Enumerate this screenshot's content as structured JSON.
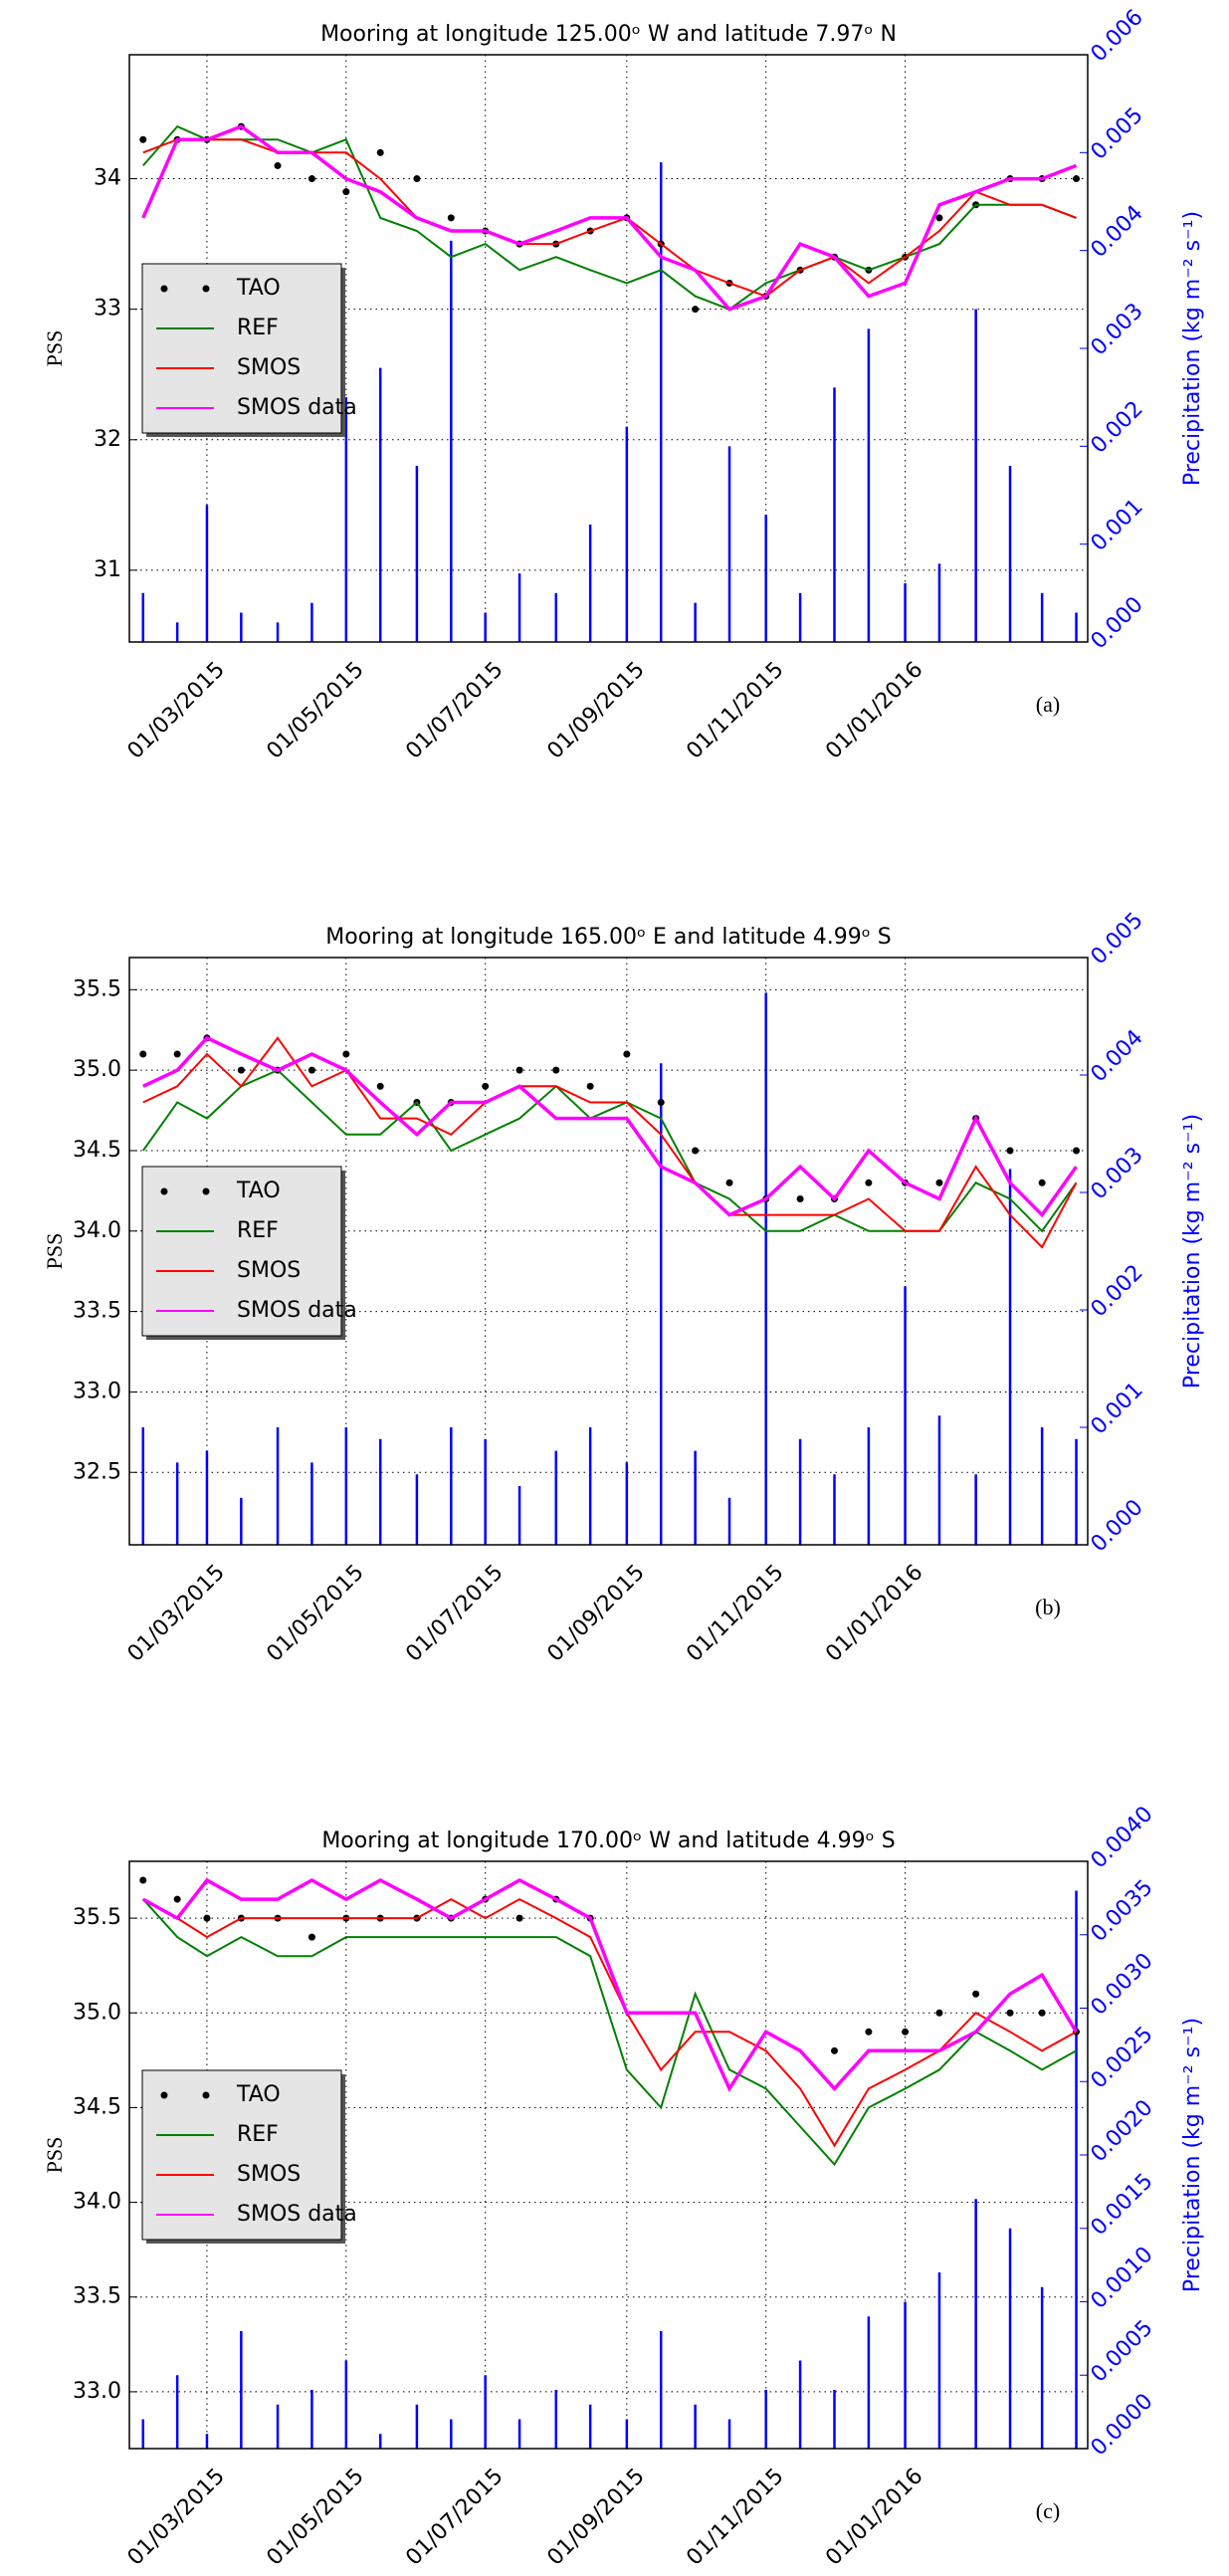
{
  "chart_data": [
    {
      "type": "line",
      "title": "Mooring at longitude 125.00ᵒ W and latitude 7.97ᵒ N",
      "panel_label": "(a)",
      "ylabel": "PSS",
      "y2label": "Precipitation (kg m⁻² s⁻¹)",
      "grid": true,
      "legend": "center left",
      "xlim": [
        "2015-01-26",
        "2016-03-21"
      ],
      "xticks": [
        {
          "value": "2015-03-01",
          "label": "01/03/2015"
        },
        {
          "value": "2015-05-01",
          "label": "01/05/2015"
        },
        {
          "value": "2015-07-01",
          "label": "01/07/2015"
        },
        {
          "value": "2015-09-01",
          "label": "01/09/2015"
        },
        {
          "value": "2015-11-01",
          "label": "01/11/2015"
        },
        {
          "value": "2016-01-01",
          "label": "01/01/2016"
        }
      ],
      "ylim": [
        30.45,
        34.95
      ],
      "yticks": [
        31,
        32,
        33,
        34
      ],
      "y2lim": [
        0,
        0.006
      ],
      "y2ticks": [
        {
          "value": 0,
          "label": "0.000"
        },
        {
          "value": 0.001,
          "label": "0.001"
        },
        {
          "value": 0.002,
          "label": "0.002"
        },
        {
          "value": 0.003,
          "label": "0.003"
        },
        {
          "value": 0.004,
          "label": "0.004"
        },
        {
          "value": 0.005,
          "label": "0.005"
        },
        {
          "value": 0.006,
          "label": "0.006"
        }
      ],
      "x": [
        "2015-02-01",
        "2015-02-16",
        "2015-03-01",
        "2015-03-16",
        "2015-04-01",
        "2015-04-16",
        "2015-05-01",
        "2015-05-16",
        "2015-06-01",
        "2015-06-16",
        "2015-07-01",
        "2015-07-16",
        "2015-08-01",
        "2015-08-16",
        "2015-09-01",
        "2015-09-16",
        "2015-10-01",
        "2015-10-16",
        "2015-11-01",
        "2015-11-16",
        "2015-12-01",
        "2015-12-16",
        "2016-01-01",
        "2016-01-16",
        "2016-02-01",
        "2016-02-16",
        "2016-03-01",
        "2016-03-16"
      ],
      "series": [
        {
          "name": "TAO",
          "color": "#000000",
          "style": "markers",
          "values": [
            34.3,
            34.3,
            34.3,
            34.4,
            34.1,
            34.0,
            33.9,
            34.2,
            34.0,
            33.7,
            33.6,
            33.5,
            33.5,
            33.6,
            33.7,
            33.5,
            33.0,
            33.2,
            33.1,
            33.3,
            33.4,
            33.3,
            33.4,
            33.7,
            33.8,
            34.0,
            34.0,
            34.0
          ]
        },
        {
          "name": "REF",
          "color": "#008000",
          "style": "line",
          "values": [
            34.1,
            34.4,
            34.3,
            34.3,
            34.3,
            34.2,
            34.3,
            33.7,
            33.6,
            33.4,
            33.5,
            33.3,
            33.4,
            33.3,
            33.2,
            33.3,
            33.1,
            33.0,
            33.2,
            33.3,
            33.4,
            33.3,
            33.4,
            33.5,
            33.8,
            33.8,
            33.8,
            33.7
          ]
        },
        {
          "name": "SMOS",
          "color": "#ff0000",
          "style": "line",
          "values": [
            34.2,
            34.3,
            34.3,
            34.3,
            34.2,
            34.2,
            34.2,
            34.0,
            33.7,
            33.6,
            33.6,
            33.5,
            33.5,
            33.6,
            33.7,
            33.5,
            33.3,
            33.2,
            33.1,
            33.3,
            33.4,
            33.2,
            33.4,
            33.6,
            33.9,
            33.8,
            33.8,
            33.7
          ]
        },
        {
          "name": "SMOS data",
          "color": "#ff00ff",
          "style": "line",
          "values": [
            33.7,
            34.3,
            34.3,
            34.4,
            34.2,
            34.2,
            34.0,
            33.9,
            33.7,
            33.6,
            33.6,
            33.5,
            33.6,
            33.7,
            33.7,
            33.4,
            33.3,
            33.0,
            33.1,
            33.5,
            33.4,
            33.1,
            33.2,
            33.8,
            33.9,
            34.0,
            34.0,
            34.1
          ]
        },
        {
          "color": "#0000ff",
          "style": "stem",
          "axis": "y2",
          "values": [
            0.0005,
            0.0002,
            0.0014,
            0.0003,
            0.0002,
            0.0004,
            0.0025,
            0.0028,
            0.0018,
            0.0041,
            0.0003,
            0.0007,
            0.0005,
            0.0012,
            0.0022,
            0.0049,
            0.0004,
            0.002,
            0.0013,
            0.0005,
            0.0026,
            0.0032,
            0.0006,
            0.0008,
            0.0034,
            0.0018,
            0.0005,
            0.0003
          ]
        }
      ]
    },
    {
      "type": "line",
      "title": "Mooring at longitude 165.00ᵒ E and latitude 4.99ᵒ S",
      "panel_label": "(b)",
      "ylabel": "PSS",
      "y2label": "Precipitation (kg m⁻² s⁻¹)",
      "grid": true,
      "legend": "center left",
      "xlim": [
        "2015-01-26",
        "2016-03-21"
      ],
      "xticks": [
        {
          "value": "2015-03-01",
          "label": "01/03/2015"
        },
        {
          "value": "2015-05-01",
          "label": "01/05/2015"
        },
        {
          "value": "2015-07-01",
          "label": "01/07/2015"
        },
        {
          "value": "2015-09-01",
          "label": "01/09/2015"
        },
        {
          "value": "2015-11-01",
          "label": "01/11/2015"
        },
        {
          "value": "2016-01-01",
          "label": "01/01/2016"
        }
      ],
      "ylim": [
        32.05,
        35.7
      ],
      "yticks": [
        32.5,
        {
          "value": 33,
          "label": "33.0"
        },
        33.5,
        {
          "value": 34,
          "label": "34.0"
        },
        34.5,
        {
          "value": 35,
          "label": "35.0"
        },
        35.5
      ],
      "y2lim": [
        0,
        0.005
      ],
      "y2ticks": [
        {
          "value": 0,
          "label": "0.000"
        },
        {
          "value": 0.001,
          "label": "0.001"
        },
        {
          "value": 0.002,
          "label": "0.002"
        },
        {
          "value": 0.003,
          "label": "0.003"
        },
        {
          "value": 0.004,
          "label": "0.004"
        },
        {
          "value": 0.005,
          "label": "0.005"
        }
      ],
      "x": [
        "2015-02-01",
        "2015-02-16",
        "2015-03-01",
        "2015-03-16",
        "2015-04-01",
        "2015-04-16",
        "2015-05-01",
        "2015-05-16",
        "2015-06-01",
        "2015-06-16",
        "2015-07-01",
        "2015-07-16",
        "2015-08-01",
        "2015-08-16",
        "2015-09-01",
        "2015-09-16",
        "2015-10-01",
        "2015-10-16",
        "2015-11-01",
        "2015-11-16",
        "2015-12-01",
        "2015-12-16",
        "2016-01-01",
        "2016-01-16",
        "2016-02-01",
        "2016-02-16",
        "2016-03-01",
        "2016-03-16"
      ],
      "series": [
        {
          "name": "TAO",
          "color": "#000000",
          "style": "markers",
          "values": [
            35.1,
            35.1,
            35.2,
            35.0,
            35.0,
            35.0,
            35.1,
            34.9,
            34.8,
            34.8,
            34.9,
            35.0,
            35.0,
            34.9,
            35.1,
            34.8,
            34.5,
            34.3,
            34.2,
            34.2,
            34.2,
            34.3,
            34.3,
            34.3,
            34.7,
            34.5,
            34.3,
            34.5
          ]
        },
        {
          "name": "REF",
          "color": "#008000",
          "style": "line",
          "values": [
            34.5,
            34.8,
            34.7,
            34.9,
            35.0,
            34.8,
            34.6,
            34.6,
            34.8,
            34.5,
            34.6,
            34.7,
            34.9,
            34.7,
            34.8,
            34.7,
            34.3,
            34.2,
            34.0,
            34.0,
            34.1,
            34.0,
            34.0,
            34.0,
            34.3,
            34.2,
            34.0,
            34.3
          ]
        },
        {
          "name": "SMOS",
          "color": "#ff0000",
          "style": "line",
          "values": [
            34.8,
            34.9,
            35.1,
            34.9,
            35.2,
            34.9,
            35.0,
            34.7,
            34.7,
            34.6,
            34.8,
            34.9,
            34.9,
            34.8,
            34.8,
            34.6,
            34.3,
            34.1,
            34.1,
            34.1,
            34.1,
            34.2,
            34.0,
            34.0,
            34.4,
            34.1,
            33.9,
            34.3
          ]
        },
        {
          "name": "SMOS data",
          "color": "#ff00ff",
          "style": "line",
          "values": [
            34.9,
            35.0,
            35.2,
            35.1,
            35.0,
            35.1,
            35.0,
            34.8,
            34.6,
            34.8,
            34.8,
            34.9,
            34.7,
            34.7,
            34.7,
            34.4,
            34.3,
            34.1,
            34.2,
            34.4,
            34.2,
            34.5,
            34.3,
            34.2,
            34.7,
            34.3,
            34.1,
            34.4
          ]
        },
        {
          "color": "#0000ff",
          "style": "stem",
          "axis": "y2",
          "values": [
            0.001,
            0.0007,
            0.0008,
            0.0004,
            0.001,
            0.0007,
            0.001,
            0.0009,
            0.0006,
            0.001,
            0.0009,
            0.0005,
            0.0008,
            0.001,
            0.0007,
            0.0041,
            0.0008,
            0.0004,
            0.0047,
            0.0009,
            0.0006,
            0.001,
            0.0022,
            0.0011,
            0.0006,
            0.0032,
            0.001,
            0.0009
          ]
        }
      ]
    },
    {
      "type": "line",
      "title": "Mooring at longitude 170.00ᵒ W and latitude 4.99ᵒ S",
      "panel_label": "(c)",
      "ylabel": "PSS",
      "y2label": "Precipitation (kg m⁻² s⁻¹)",
      "grid": true,
      "legend": "center left",
      "xlim": [
        "2015-01-26",
        "2016-03-21"
      ],
      "xticks": [
        {
          "value": "2015-03-01",
          "label": "01/03/2015"
        },
        {
          "value": "2015-05-01",
          "label": "01/05/2015"
        },
        {
          "value": "2015-07-01",
          "label": "01/07/2015"
        },
        {
          "value": "2015-09-01",
          "label": "01/09/2015"
        },
        {
          "value": "2015-11-01",
          "label": "01/11/2015"
        },
        {
          "value": "2016-01-01",
          "label": "01/01/2016"
        }
      ],
      "ylim": [
        32.7,
        35.8
      ],
      "yticks": [
        {
          "value": 33,
          "label": "33.0"
        },
        33.5,
        {
          "value": 34,
          "label": "34.0"
        },
        34.5,
        {
          "value": 35,
          "label": "35.0"
        },
        35.5
      ],
      "y2lim": [
        0,
        0.004
      ],
      "y2ticks": [
        {
          "value": 0,
          "label": "0.0000"
        },
        {
          "value": 0.0005,
          "label": "0.0005"
        },
        {
          "value": 0.001,
          "label": "0.0010"
        },
        {
          "value": 0.0015,
          "label": "0.0015"
        },
        {
          "value": 0.002,
          "label": "0.0020"
        },
        {
          "value": 0.0025,
          "label": "0.0025"
        },
        {
          "value": 0.003,
          "label": "0.0030"
        },
        {
          "value": 0.0035,
          "label": "0.0035"
        },
        {
          "value": 0.004,
          "label": "0.0040"
        }
      ],
      "x": [
        "2015-02-01",
        "2015-02-16",
        "2015-03-01",
        "2015-03-16",
        "2015-04-01",
        "2015-04-16",
        "2015-05-01",
        "2015-05-16",
        "2015-06-01",
        "2015-06-16",
        "2015-07-01",
        "2015-07-16",
        "2015-08-01",
        "2015-08-16",
        "2015-09-01",
        "2015-09-16",
        "2015-10-01",
        "2015-10-16",
        "2015-11-01",
        "2015-11-16",
        "2015-12-01",
        "2015-12-16",
        "2016-01-01",
        "2016-01-16",
        "2016-02-01",
        "2016-02-16",
        "2016-03-01",
        "2016-03-16"
      ],
      "series": [
        {
          "name": "TAO",
          "color": "#000000",
          "style": "markers",
          "values": [
            35.7,
            35.6,
            35.5,
            35.5,
            35.5,
            35.4,
            35.5,
            35.5,
            35.5,
            35.5,
            35.6,
            35.5,
            35.6,
            35.5,
            null,
            null,
            null,
            null,
            null,
            null,
            34.8,
            34.9,
            34.9,
            35.0,
            35.1,
            35.0,
            35.0,
            34.9
          ]
        },
        {
          "name": "REF",
          "color": "#008000",
          "style": "line",
          "values": [
            35.6,
            35.4,
            35.3,
            35.4,
            35.3,
            35.3,
            35.4,
            35.4,
            35.4,
            35.4,
            35.4,
            35.4,
            35.4,
            35.3,
            34.7,
            34.5,
            35.1,
            34.7,
            34.6,
            34.4,
            34.2,
            34.5,
            34.6,
            34.7,
            34.9,
            34.8,
            34.7,
            34.8
          ]
        },
        {
          "name": "SMOS",
          "color": "#ff0000",
          "style": "line",
          "values": [
            35.6,
            35.5,
            35.4,
            35.5,
            35.5,
            35.5,
            35.5,
            35.5,
            35.5,
            35.6,
            35.5,
            35.6,
            35.5,
            35.4,
            35.0,
            34.7,
            34.9,
            34.9,
            34.8,
            34.6,
            34.3,
            34.6,
            34.7,
            34.8,
            35.0,
            34.9,
            34.8,
            34.9
          ]
        },
        {
          "name": "SMOS data",
          "color": "#ff00ff",
          "style": "line",
          "values": [
            35.6,
            35.5,
            35.7,
            35.6,
            35.6,
            35.7,
            35.6,
            35.7,
            35.6,
            35.5,
            35.6,
            35.7,
            35.6,
            35.5,
            35.0,
            35.0,
            35.0,
            34.6,
            34.9,
            34.8,
            34.6,
            34.8,
            34.8,
            34.8,
            34.9,
            35.1,
            35.2,
            34.9
          ]
        },
        {
          "color": "#0000ff",
          "style": "stem",
          "axis": "y2",
          "values": [
            0.0002,
            0.0005,
            0.0001,
            0.0008,
            0.0003,
            0.0004,
            0.0006,
            0.0001,
            0.0003,
            0.0002,
            0.0005,
            0.0002,
            0.0004,
            0.0003,
            0.0002,
            0.0008,
            0.0003,
            0.0002,
            0.0004,
            0.0006,
            0.0004,
            0.0009,
            0.001,
            0.0012,
            0.0017,
            0.0015,
            0.0011,
            0.0038
          ]
        }
      ]
    }
  ]
}
